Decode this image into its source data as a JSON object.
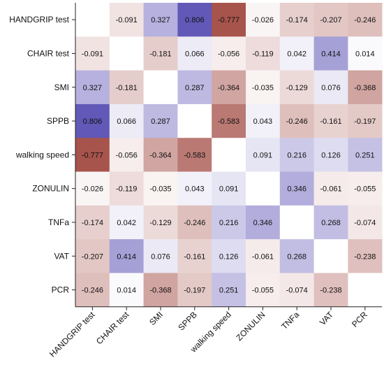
{
  "chart_data": {
    "type": "heatmap",
    "title": "",
    "variables": [
      "HANDGRIP test",
      "CHAIR test",
      "SMI",
      "SPPB",
      "walking speed",
      "ZONULIN",
      "TNFa",
      "VAT",
      "PCR"
    ],
    "matrix": [
      [
        null,
        -0.091,
        0.327,
        0.806,
        -0.777,
        -0.026,
        -0.174,
        -0.207,
        -0.246
      ],
      [
        -0.091,
        null,
        -0.181,
        0.066,
        -0.056,
        -0.119,
        0.042,
        0.414,
        0.014
      ],
      [
        0.327,
        -0.181,
        null,
        0.287,
        -0.364,
        -0.035,
        -0.129,
        0.076,
        -0.368
      ],
      [
        0.806,
        0.066,
        0.287,
        null,
        -0.583,
        0.043,
        -0.246,
        -0.161,
        -0.197
      ],
      [
        -0.777,
        -0.056,
        -0.364,
        -0.583,
        null,
        0.091,
        0.216,
        0.126,
        0.251
      ],
      [
        -0.026,
        -0.119,
        -0.035,
        0.043,
        0.091,
        null,
        0.346,
        -0.061,
        -0.055
      ],
      [
        -0.174,
        0.042,
        -0.129,
        -0.246,
        0.216,
        0.346,
        null,
        0.268,
        -0.074
      ],
      [
        -0.207,
        0.414,
        0.076,
        -0.161,
        0.126,
        -0.061,
        0.268,
        null,
        -0.238
      ],
      [
        -0.246,
        0.014,
        -0.368,
        -0.197,
        0.251,
        -0.055,
        -0.074,
        -0.238,
        null
      ]
    ],
    "value_format_decimals": 3,
    "color_scale": {
      "negative": "#a0463e",
      "neutral": "#ffffff",
      "positive": "#5a50b4",
      "domain": [
        -0.85,
        0.85
      ]
    },
    "diagonal_empty": true
  }
}
